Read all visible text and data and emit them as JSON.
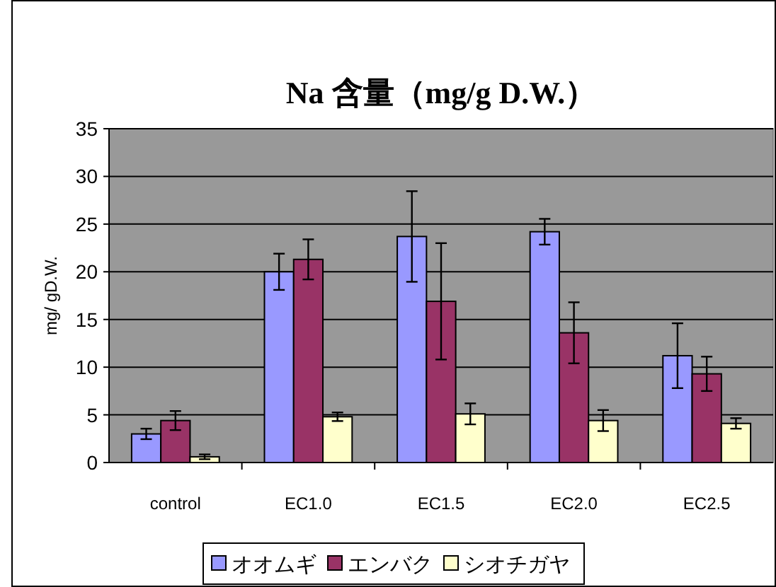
{
  "chart_data": {
    "type": "bar",
    "title": "Na 含量（mg/g D.W.）",
    "ylabel": "mg/ gD.W.",
    "categories": [
      "control",
      "EC1.0",
      "EC1.5",
      "EC2.0",
      "EC2.5"
    ],
    "series": [
      {
        "name": "オオムギ",
        "color": "#9999ff",
        "values": [
          3.0,
          20.0,
          23.7,
          24.2,
          11.2
        ],
        "errors": [
          0.55,
          1.9,
          4.75,
          1.35,
          3.4
        ]
      },
      {
        "name": "エンバク",
        "color": "#993366",
        "values": [
          4.4,
          21.3,
          16.9,
          13.6,
          9.3
        ],
        "errors": [
          1.0,
          2.1,
          6.1,
          3.2,
          1.8
        ]
      },
      {
        "name": "シオチガヤ",
        "color": "#ffffcc",
        "values": [
          0.6,
          4.8,
          5.1,
          4.4,
          4.1
        ],
        "errors": [
          0.25,
          0.45,
          1.1,
          1.1,
          0.55
        ]
      }
    ],
    "ylim": [
      0,
      35
    ],
    "yticks": [
      0,
      5,
      10,
      15,
      20,
      25,
      30,
      35
    ],
    "grid": "y",
    "legend": "bottom"
  }
}
